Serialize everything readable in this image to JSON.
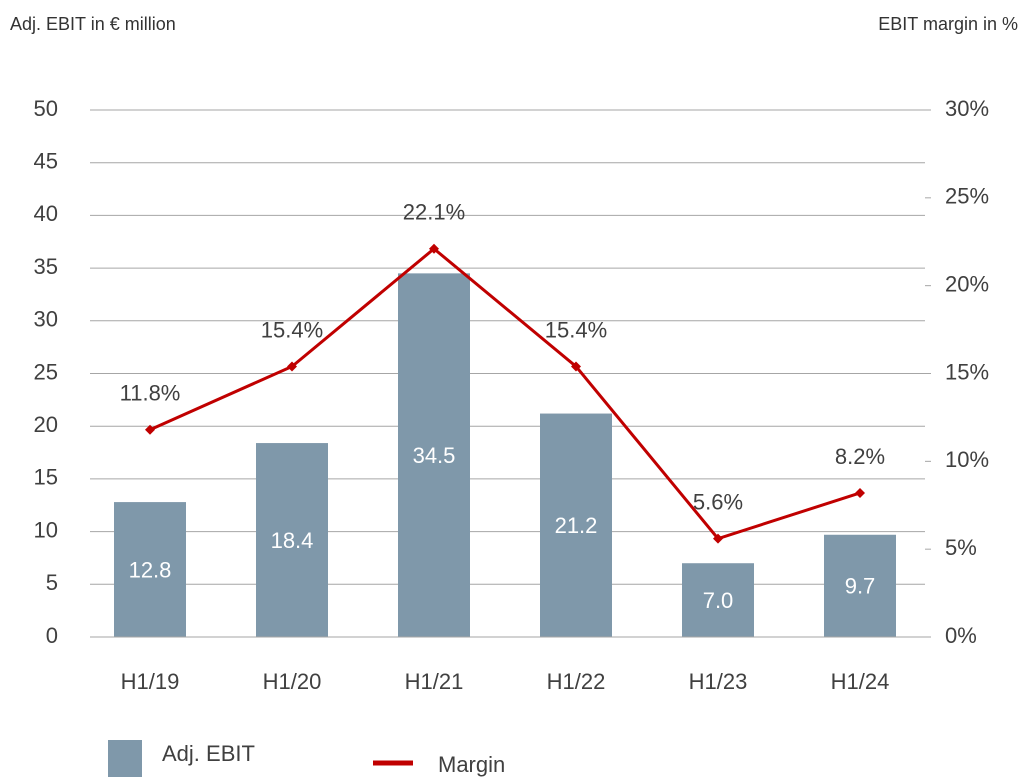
{
  "chart_data": {
    "type": "bar_line",
    "y_label": "Adj. EBIT in € million",
    "y2_label": "EBIT margin in %",
    "categories": [
      "H1/19",
      "H1/20",
      "H1/21",
      "H1/22",
      "H1/23",
      "H1/24"
    ],
    "series": [
      {
        "name": "Adj. EBIT",
        "type": "bar",
        "color": "#7f98aa",
        "values": [
          12.8,
          18.4,
          34.5,
          21.2,
          7.0,
          9.7
        ],
        "value_labels": [
          "12.8",
          "18.4",
          "34.5",
          "21.2",
          "7.0",
          "9.7"
        ]
      },
      {
        "name": "Margin",
        "type": "line",
        "axis": "y2",
        "color": "#c00000",
        "values": [
          11.8,
          15.4,
          22.1,
          15.4,
          5.6,
          8.2
        ],
        "value_labels": [
          "11.8%",
          "15.4%",
          "22.1%",
          "15.4%",
          "5.6%",
          "8.2%"
        ]
      }
    ],
    "ylim": [
      0,
      50
    ],
    "yticks": [
      0,
      5,
      10,
      15,
      20,
      25,
      30,
      35,
      40,
      45,
      50
    ],
    "y2lim": [
      0,
      30
    ],
    "y2ticks": [
      {
        "value": 0,
        "label": "0%"
      },
      {
        "value": 5,
        "label": "5%"
      },
      {
        "value": 10,
        "label": "10%"
      },
      {
        "value": 15,
        "label": "15%"
      },
      {
        "value": 20,
        "label": "20%"
      },
      {
        "value": 25,
        "label": "25%"
      },
      {
        "value": 30,
        "label": "30%"
      }
    ],
    "grid": true,
    "legend": "bottom-left"
  }
}
